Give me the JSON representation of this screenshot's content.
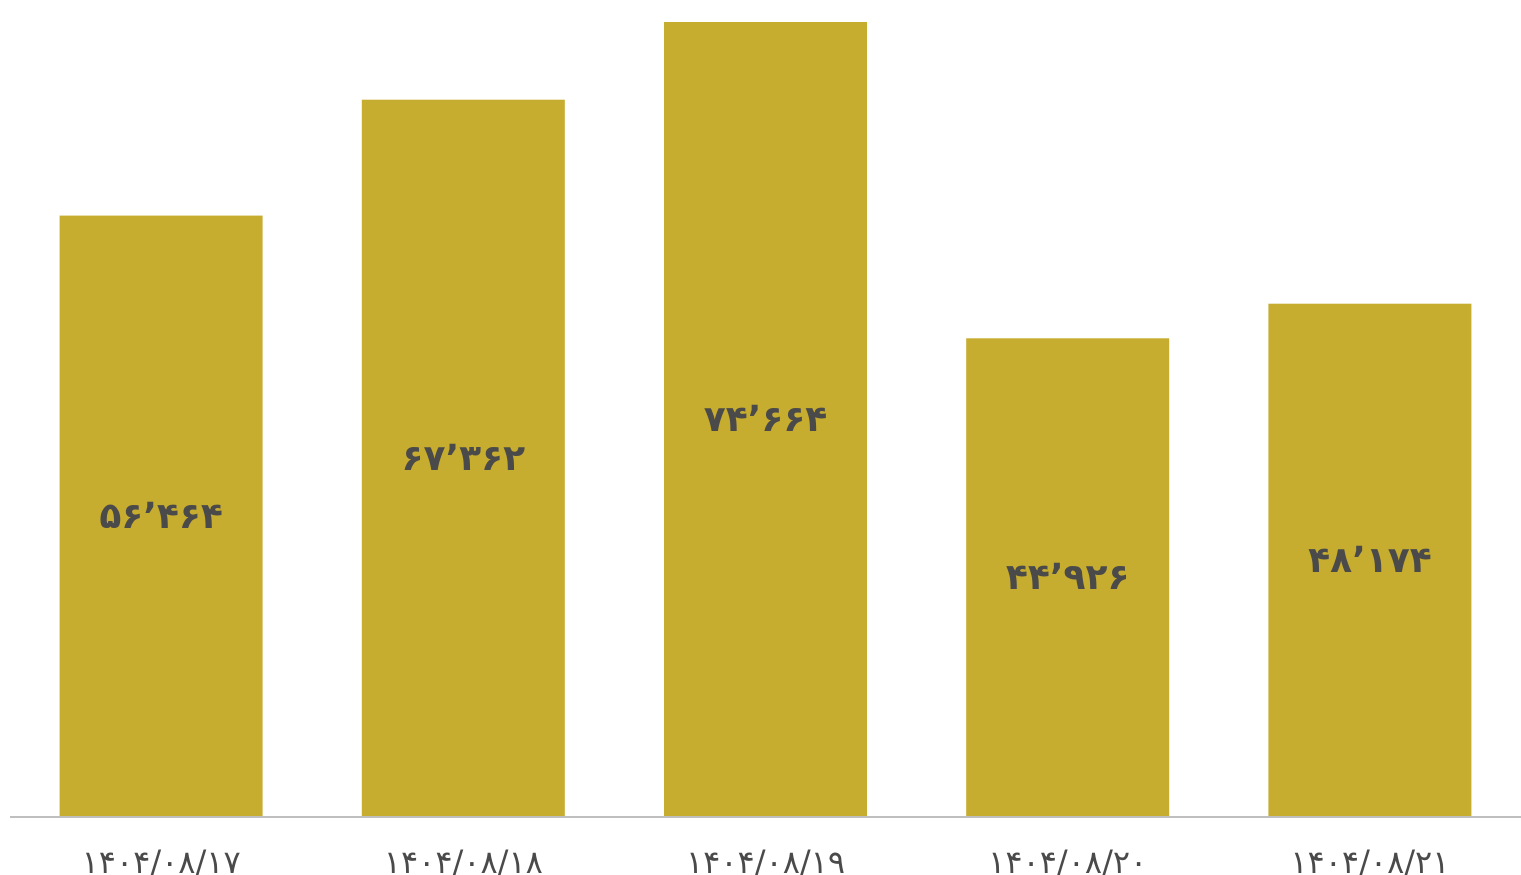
{
  "chart_data": {
    "type": "bar",
    "categories": [
      "۱۴۰۴/۰۸/۱۷",
      "۱۴۰۴/۰۸/۱۸",
      "۱۴۰۴/۰۸/۱۹",
      "۱۴۰۴/۰۸/۲۰",
      "۱۴۰۴/۰۸/۲۱"
    ],
    "values": [
      56464,
      67362,
      74664,
      44926,
      48174
    ],
    "value_labels": [
      "۵۶٬۴۶۴",
      "۶۷٬۳۶۲",
      "۷۴٬۶۶۴",
      "۴۴٬۹۲۶",
      "۴۸٬۱۷۴"
    ],
    "title": "",
    "xlabel": "",
    "ylabel": "",
    "ylim": [
      0,
      75700
    ],
    "grid": false,
    "legend": "none",
    "colors": {
      "bar": "#C6AC2F",
      "axis": "#BFBFBF",
      "text": "#4A4A4A"
    }
  }
}
